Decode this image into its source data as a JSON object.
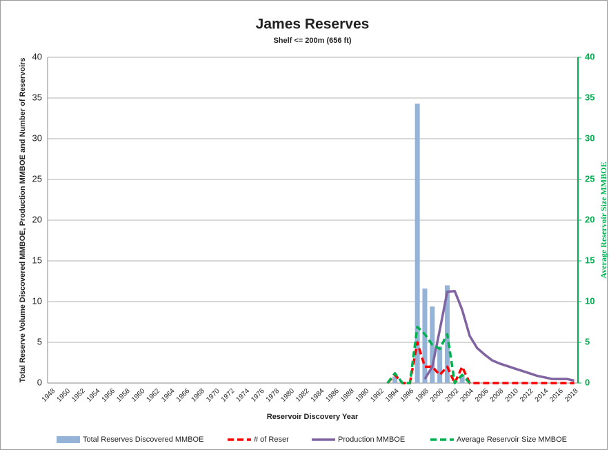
{
  "chart_data": {
    "type": "bar-line",
    "title": "James Reserves",
    "subtitle": "Shelf <= 200m (656 ft)",
    "x_label": "Reservoir Discovery Year",
    "y_label": "Total Reserve Volume Discovered MMBOE, Production MMBOE and Number of Reservoirs",
    "y2_label": "Average Reservoir Size MMBOE",
    "categories": [
      "1948",
      null,
      "1950",
      null,
      "1952",
      null,
      "1954",
      null,
      "1956",
      null,
      "1958",
      null,
      "1960",
      null,
      "1962",
      null,
      "1964",
      null,
      "1966",
      null,
      "1968",
      null,
      "1970",
      null,
      "1972",
      null,
      "1974",
      null,
      "1976",
      null,
      "1978",
      null,
      "1980",
      null,
      "1982",
      null,
      "1984",
      null,
      "1986",
      null,
      "1988",
      null,
      "1990",
      null,
      "1992",
      null,
      "1994",
      null,
      "1996",
      null,
      "1998",
      null,
      "2000",
      null,
      "2002",
      null,
      "2004",
      null,
      "2006",
      null,
      "2008",
      null,
      "2010",
      null,
      "2012",
      null,
      "2014",
      null,
      "2016",
      null,
      "2018"
    ],
    "ylim": [
      0,
      40
    ],
    "yticks": [
      0,
      5,
      10,
      15,
      20,
      25,
      30,
      35,
      40
    ],
    "y2lim": [
      0,
      40
    ],
    "y2ticks": [
      0,
      5,
      10,
      15,
      20,
      25,
      30,
      35,
      40
    ],
    "grid": true,
    "series": [
      {
        "name": "Total Reserves Discovered MMBOE",
        "kind": "bar",
        "color": "#95b3d7",
        "values": [
          null,
          null,
          null,
          null,
          null,
          null,
          null,
          null,
          null,
          null,
          null,
          null,
          null,
          null,
          null,
          null,
          null,
          null,
          null,
          null,
          null,
          null,
          null,
          null,
          null,
          null,
          null,
          null,
          null,
          null,
          null,
          null,
          null,
          null,
          null,
          null,
          null,
          null,
          null,
          null,
          null,
          null,
          null,
          null,
          null,
          null,
          0.8,
          null,
          null,
          34.3,
          11.6,
          9.4,
          4.5,
          12.0,
          null,
          1.0,
          null,
          null,
          null,
          null,
          null,
          null,
          null,
          null,
          null,
          null,
          null,
          null,
          null,
          null,
          null
        ]
      },
      {
        "name": "# of Reser",
        "kind": "line",
        "dash": true,
        "color": "#ff0000",
        "values": [
          null,
          null,
          null,
          null,
          null,
          null,
          null,
          null,
          null,
          null,
          null,
          null,
          null,
          null,
          null,
          null,
          null,
          null,
          null,
          null,
          null,
          null,
          null,
          null,
          null,
          null,
          null,
          null,
          null,
          null,
          null,
          null,
          null,
          null,
          null,
          null,
          null,
          null,
          null,
          null,
          null,
          null,
          null,
          null,
          null,
          0,
          1,
          0,
          0,
          5,
          2,
          2,
          1,
          2,
          0,
          2,
          0,
          0,
          0,
          0,
          0,
          0,
          0,
          0,
          0,
          0,
          0,
          0,
          0,
          0,
          0
        ]
      },
      {
        "name": "Production MMBOE",
        "kind": "line",
        "dash": false,
        "color": "#8064a2",
        "values": [
          null,
          null,
          null,
          null,
          null,
          null,
          null,
          null,
          null,
          null,
          null,
          null,
          null,
          null,
          null,
          null,
          null,
          null,
          null,
          null,
          null,
          null,
          null,
          null,
          null,
          null,
          null,
          null,
          null,
          null,
          null,
          null,
          null,
          null,
          null,
          null,
          null,
          null,
          null,
          null,
          null,
          null,
          null,
          null,
          null,
          null,
          null,
          null,
          null,
          null,
          0.5,
          2,
          6.5,
          11.2,
          11.3,
          9,
          5.8,
          4.3,
          3.5,
          2.8,
          2.4,
          2.1,
          1.8,
          1.5,
          1.2,
          0.9,
          0.7,
          0.5,
          0.5,
          0.5,
          0.3
        ]
      },
      {
        "name": "Average Reservoir Size MMBOE",
        "kind": "line",
        "dash": true,
        "axis": "y2",
        "color": "#00b050",
        "values": [
          null,
          null,
          null,
          null,
          null,
          null,
          null,
          null,
          null,
          null,
          null,
          null,
          null,
          null,
          null,
          null,
          null,
          null,
          null,
          null,
          null,
          null,
          null,
          null,
          null,
          null,
          null,
          null,
          null,
          null,
          null,
          null,
          null,
          null,
          null,
          null,
          null,
          null,
          null,
          null,
          null,
          null,
          null,
          null,
          null,
          0,
          1.2,
          0,
          0,
          6.9,
          6,
          4.7,
          4.2,
          6,
          0,
          1,
          0,
          null,
          null,
          null,
          null,
          null,
          null,
          null,
          null,
          null,
          null,
          null,
          null,
          null,
          null
        ]
      }
    ]
  }
}
